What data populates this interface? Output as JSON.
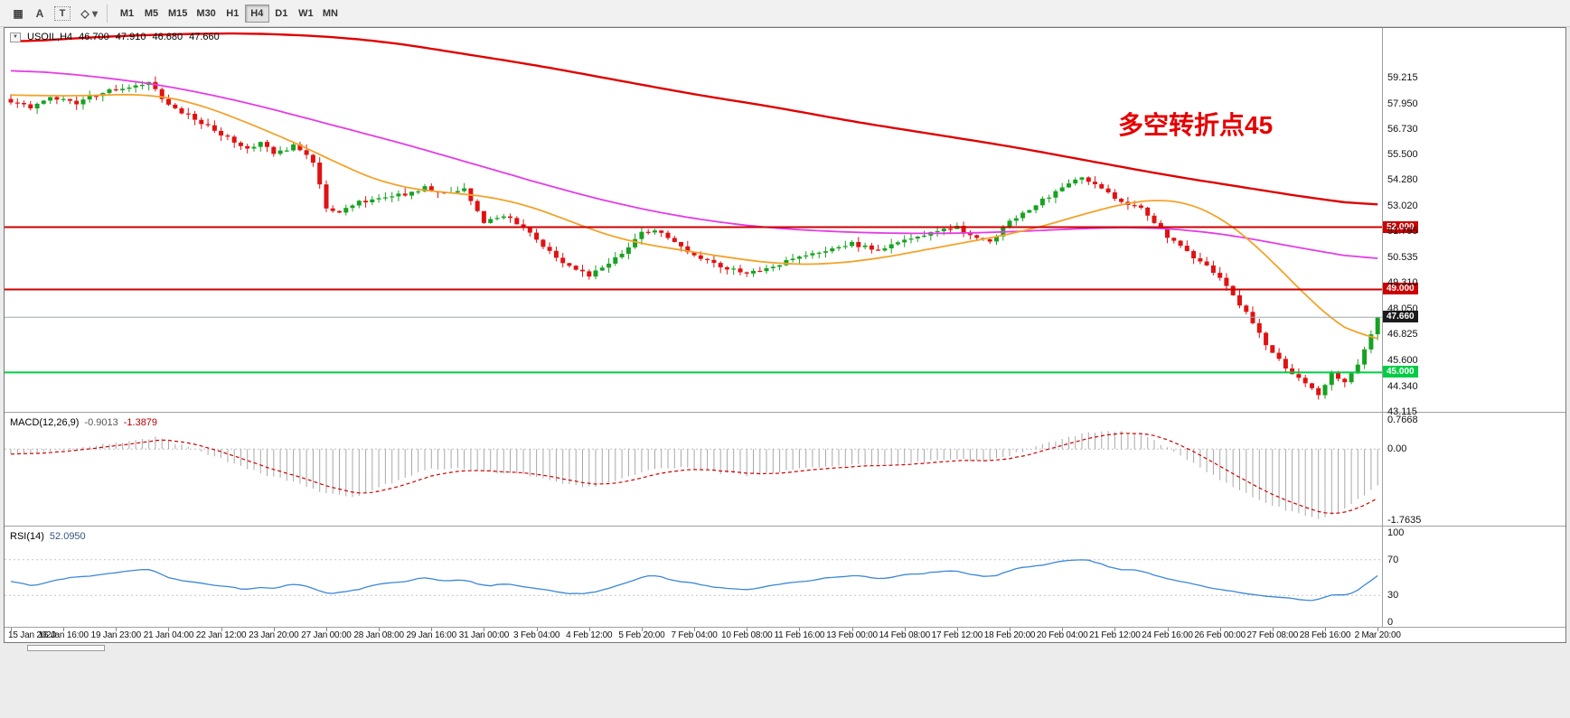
{
  "colors": {
    "up": "#17a222",
    "down": "#e01212",
    "ma_red": "#e00000",
    "ma_magenta": "#e53ce5",
    "ma_orange": "#f2a32b",
    "current_line": "#9fa8b0",
    "macd_hist": "#a8a8a8",
    "macd_signal": "#cf0000",
    "rsi_line": "#3c87d7",
    "annotation": "#e60000"
  },
  "toolbar": {
    "icons": [
      {
        "name": "chart-grid-icon",
        "glyph": "▦"
      },
      {
        "name": "text-annotation-icon",
        "glyph": "A"
      },
      {
        "name": "text-box-icon",
        "glyph": "T"
      },
      {
        "name": "shapes-icon",
        "glyph": "◇"
      },
      {
        "name": "dropdown-arrow-icon",
        "glyph": "▾"
      }
    ],
    "timeframes": [
      "M1",
      "M5",
      "M15",
      "M30",
      "H1",
      "H4",
      "D1",
      "W1",
      "MN"
    ],
    "active_timeframe": "H4"
  },
  "chart": {
    "collapse_glyph": "▼",
    "symbol": "USOIL,H4",
    "ohlc": {
      "open": "46.700",
      "high": "47.910",
      "low": "46.680",
      "close": "47.660"
    },
    "annotation": "多空转折点45",
    "price_axis_labels": [
      "59.215",
      "57.950",
      "56.730",
      "55.500",
      "54.280",
      "53.020",
      "51.795",
      "50.535",
      "49.310",
      "48.050",
      "46.825",
      "45.600",
      "44.340",
      "43.115"
    ],
    "hlines": [
      {
        "price": 52.0,
        "label": "52.000",
        "color": "#cc0000"
      },
      {
        "price": 49.0,
        "label": "49.000",
        "color": "#cc0000"
      },
      {
        "price": 45.0,
        "label": "45.000",
        "color": "#00cc44"
      }
    ],
    "current_price": {
      "price": 47.66,
      "label": "47.660"
    }
  },
  "macd_panel": {
    "title": "MACD(12,26,9)",
    "main_value": "-0.9013",
    "signal_value": "-1.3879",
    "axis_labels": [
      "0.7668",
      "0.00",
      "-1.7635"
    ]
  },
  "rsi_panel": {
    "title": "RSI(14)",
    "value": "52.0950",
    "axis_labels": [
      "100",
      "70",
      "30",
      "0"
    ]
  },
  "time_axis": [
    "15 Jan 2020",
    "16 Jan 16:00",
    "19 Jan 23:00",
    "21 Jan 04:00",
    "22 Jan 12:00",
    "23 Jan 20:00",
    "27 Jan 00:00",
    "28 Jan 08:00",
    "29 Jan 16:00",
    "31 Jan 00:00",
    "3 Feb 04:00",
    "4 Feb 12:00",
    "5 Feb 20:00",
    "7 Feb 04:00",
    "10 Feb 08:00",
    "11 Feb 16:00",
    "13 Feb 00:00",
    "14 Feb 08:00",
    "17 Feb 12:00",
    "18 Feb 20:00",
    "20 Feb 04:00",
    "21 Feb 12:00",
    "24 Feb 16:00",
    "26 Feb 00:00",
    "27 Feb 08:00",
    "28 Feb 16:00",
    "2 Mar 20:00"
  ],
  "chart_data": {
    "type": "candlestick",
    "symbol": "USOIL",
    "timeframe": "H4",
    "bars": 209,
    "price_top": 61.6,
    "price_bottom": 43.1,
    "last_close": 47.66,
    "close_path": [
      [
        0,
        58.1
      ],
      [
        3,
        57.8
      ],
      [
        6,
        58.3
      ],
      [
        10,
        58.0
      ],
      [
        14,
        58.5
      ],
      [
        18,
        58.8
      ],
      [
        21,
        59.0
      ],
      [
        24,
        57.9
      ],
      [
        28,
        57.2
      ],
      [
        32,
        56.5
      ],
      [
        36,
        55.8
      ],
      [
        38,
        56.1
      ],
      [
        40,
        55.5
      ],
      [
        43,
        55.9
      ],
      [
        46,
        55.2
      ],
      [
        48,
        52.9
      ],
      [
        50,
        52.7
      ],
      [
        53,
        53.2
      ],
      [
        56,
        53.4
      ],
      [
        60,
        53.6
      ],
      [
        63,
        53.9
      ],
      [
        66,
        53.6
      ],
      [
        69,
        53.8
      ],
      [
        72,
        52.2
      ],
      [
        75,
        52.6
      ],
      [
        78,
        52.0
      ],
      [
        80,
        51.4
      ],
      [
        84,
        50.3
      ],
      [
        88,
        49.7
      ],
      [
        91,
        50.2
      ],
      [
        94,
        51.0
      ],
      [
        96,
        51.7
      ],
      [
        98,
        51.9
      ],
      [
        101,
        51.2
      ],
      [
        104,
        50.7
      ],
      [
        108,
        50.1
      ],
      [
        112,
        49.8
      ],
      [
        116,
        50.1
      ],
      [
        120,
        50.6
      ],
      [
        124,
        50.9
      ],
      [
        128,
        51.2
      ],
      [
        132,
        50.9
      ],
      [
        136,
        51.4
      ],
      [
        140,
        51.7
      ],
      [
        144,
        52.0
      ],
      [
        146,
        51.6
      ],
      [
        149,
        51.3
      ],
      [
        152,
        52.3
      ],
      [
        156,
        53.1
      ],
      [
        160,
        53.9
      ],
      [
        163,
        54.4
      ],
      [
        166,
        53.9
      ],
      [
        168,
        53.3
      ],
      [
        172,
        53.0
      ],
      [
        176,
        51.5
      ],
      [
        179,
        50.8
      ],
      [
        182,
        50.1
      ],
      [
        184,
        49.5
      ],
      [
        187,
        48.3
      ],
      [
        190,
        46.9
      ],
      [
        192,
        45.9
      ],
      [
        195,
        44.9
      ],
      [
        198,
        44.2
      ],
      [
        199,
        43.9
      ],
      [
        200,
        44.4
      ],
      [
        201,
        45.0
      ],
      [
        203,
        44.5
      ],
      [
        205,
        45.4
      ],
      [
        206,
        46.1
      ],
      [
        208,
        47.66
      ]
    ],
    "ma_slow_red": [
      [
        0,
        60.9
      ],
      [
        12,
        61.15
      ],
      [
        24,
        61.3
      ],
      [
        36,
        61.35
      ],
      [
        48,
        61.2
      ],
      [
        58,
        60.9
      ],
      [
        68,
        60.4
      ],
      [
        80,
        59.8
      ],
      [
        92,
        59.1
      ],
      [
        104,
        58.4
      ],
      [
        116,
        57.8
      ],
      [
        128,
        57.1
      ],
      [
        140,
        56.5
      ],
      [
        152,
        55.9
      ],
      [
        164,
        55.2
      ],
      [
        176,
        54.5
      ],
      [
        188,
        53.9
      ],
      [
        198,
        53.4
      ],
      [
        208,
        53.0
      ]
    ],
    "ma_mid_magenta": [
      [
        0,
        59.6
      ],
      [
        12,
        59.3
      ],
      [
        24,
        58.8
      ],
      [
        36,
        58.0
      ],
      [
        48,
        57.0
      ],
      [
        60,
        56.0
      ],
      [
        72,
        54.9
      ],
      [
        84,
        53.8
      ],
      [
        94,
        53.0
      ],
      [
        104,
        52.4
      ],
      [
        114,
        52.0
      ],
      [
        124,
        51.8
      ],
      [
        134,
        51.7
      ],
      [
        144,
        51.7
      ],
      [
        154,
        51.8
      ],
      [
        164,
        51.95
      ],
      [
        172,
        52.0
      ],
      [
        180,
        51.85
      ],
      [
        188,
        51.5
      ],
      [
        196,
        51.0
      ],
      [
        202,
        50.7
      ],
      [
        208,
        50.35
      ]
    ],
    "ma_fast_orange": [
      [
        0,
        58.4
      ],
      [
        8,
        58.3
      ],
      [
        16,
        58.4
      ],
      [
        22,
        58.4
      ],
      [
        28,
        58.0
      ],
      [
        34,
        57.3
      ],
      [
        40,
        56.5
      ],
      [
        46,
        55.7
      ],
      [
        52,
        54.7
      ],
      [
        58,
        54.0
      ],
      [
        64,
        53.7
      ],
      [
        70,
        53.6
      ],
      [
        76,
        53.3
      ],
      [
        82,
        52.7
      ],
      [
        88,
        51.9
      ],
      [
        94,
        51.3
      ],
      [
        100,
        51.0
      ],
      [
        106,
        50.7
      ],
      [
        112,
        50.4
      ],
      [
        118,
        50.2
      ],
      [
        124,
        50.2
      ],
      [
        130,
        50.4
      ],
      [
        136,
        50.7
      ],
      [
        142,
        51.1
      ],
      [
        148,
        51.4
      ],
      [
        154,
        51.8
      ],
      [
        160,
        52.3
      ],
      [
        166,
        52.9
      ],
      [
        172,
        53.3
      ],
      [
        177,
        53.4
      ],
      [
        182,
        52.9
      ],
      [
        186,
        52.1
      ],
      [
        190,
        51.0
      ],
      [
        194,
        49.7
      ],
      [
        198,
        48.4
      ],
      [
        201,
        47.5
      ],
      [
        204,
        46.8
      ],
      [
        208,
        46.3
      ]
    ],
    "macd": {
      "top": 0.8788,
      "bottom": -1.898,
      "path": [
        [
          0,
          -0.12
        ],
        [
          6,
          -0.05
        ],
        [
          12,
          0.08
        ],
        [
          18,
          0.2
        ],
        [
          22,
          0.28
        ],
        [
          26,
          0.1
        ],
        [
          32,
          -0.25
        ],
        [
          38,
          -0.6
        ],
        [
          44,
          -0.85
        ],
        [
          48,
          -1.1
        ],
        [
          52,
          -1.2
        ],
        [
          56,
          -0.95
        ],
        [
          60,
          -0.7
        ],
        [
          64,
          -0.5
        ],
        [
          68,
          -0.45
        ],
        [
          72,
          -0.55
        ],
        [
          76,
          -0.6
        ],
        [
          80,
          -0.7
        ],
        [
          84,
          -0.85
        ],
        [
          88,
          -0.95
        ],
        [
          92,
          -0.8
        ],
        [
          96,
          -0.55
        ],
        [
          100,
          -0.45
        ],
        [
          104,
          -0.5
        ],
        [
          108,
          -0.6
        ],
        [
          112,
          -0.65
        ],
        [
          116,
          -0.6
        ],
        [
          120,
          -0.5
        ],
        [
          124,
          -0.45
        ],
        [
          128,
          -0.4
        ],
        [
          132,
          -0.4
        ],
        [
          136,
          -0.35
        ],
        [
          140,
          -0.3
        ],
        [
          144,
          -0.25
        ],
        [
          148,
          -0.3
        ],
        [
          152,
          -0.15
        ],
        [
          156,
          0.05
        ],
        [
          160,
          0.25
        ],
        [
          164,
          0.4
        ],
        [
          168,
          0.45
        ],
        [
          172,
          0.35
        ],
        [
          176,
          0.05
        ],
        [
          180,
          -0.35
        ],
        [
          184,
          -0.75
        ],
        [
          188,
          -1.1
        ],
        [
          192,
          -1.4
        ],
        [
          196,
          -1.6
        ],
        [
          199,
          -1.72
        ],
        [
          202,
          -1.55
        ],
        [
          205,
          -1.25
        ],
        [
          208,
          -0.9
        ]
      ]
    },
    "rsi": {
      "min": 0,
      "max": 100,
      "levels": [
        70,
        30
      ],
      "path": [
        [
          0,
          46
        ],
        [
          4,
          41
        ],
        [
          8,
          49
        ],
        [
          12,
          52
        ],
        [
          16,
          56
        ],
        [
          21,
          60
        ],
        [
          24,
          50
        ],
        [
          28,
          44
        ],
        [
          32,
          40
        ],
        [
          36,
          36
        ],
        [
          38,
          41
        ],
        [
          40,
          37
        ],
        [
          43,
          42
        ],
        [
          46,
          38
        ],
        [
          48,
          31
        ],
        [
          52,
          36
        ],
        [
          56,
          42
        ],
        [
          60,
          46
        ],
        [
          63,
          50
        ],
        [
          66,
          46
        ],
        [
          69,
          48
        ],
        [
          72,
          40
        ],
        [
          75,
          44
        ],
        [
          78,
          41
        ],
        [
          80,
          38
        ],
        [
          84,
          33
        ],
        [
          88,
          31
        ],
        [
          91,
          38
        ],
        [
          94,
          45
        ],
        [
          96,
          50
        ],
        [
          98,
          53
        ],
        [
          101,
          46
        ],
        [
          104,
          43
        ],
        [
          108,
          38
        ],
        [
          112,
          36
        ],
        [
          116,
          41
        ],
        [
          120,
          46
        ],
        [
          124,
          49
        ],
        [
          128,
          52
        ],
        [
          132,
          49
        ],
        [
          136,
          53
        ],
        [
          140,
          56
        ],
        [
          144,
          58
        ],
        [
          146,
          53
        ],
        [
          149,
          50
        ],
        [
          152,
          58
        ],
        [
          156,
          63
        ],
        [
          160,
          68
        ],
        [
          163,
          72
        ],
        [
          166,
          65
        ],
        [
          168,
          60
        ],
        [
          172,
          57
        ],
        [
          176,
          48
        ],
        [
          179,
          44
        ],
        [
          182,
          40
        ],
        [
          184,
          37
        ],
        [
          187,
          33
        ],
        [
          190,
          30
        ],
        [
          192,
          28
        ],
        [
          195,
          26
        ],
        [
          198,
          24
        ],
        [
          200,
          27
        ],
        [
          201,
          32
        ],
        [
          203,
          29
        ],
        [
          205,
          36
        ],
        [
          206,
          41
        ],
        [
          208,
          52.1
        ]
      ]
    }
  }
}
